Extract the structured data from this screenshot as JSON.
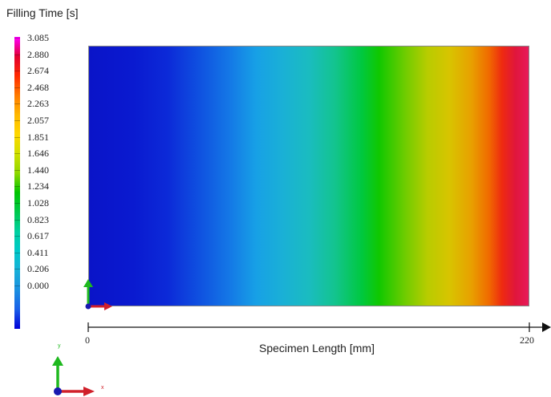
{
  "legend": {
    "title": "Filling Time [s]",
    "labels": [
      "3.085",
      "2.880",
      "2.674",
      "2.468",
      "2.263",
      "2.057",
      "1.851",
      "1.646",
      "1.440",
      "1.234",
      "1.028",
      "0.823",
      "0.617",
      "0.411",
      "0.206",
      "0.000"
    ],
    "colors": [
      "#ff00ff",
      "#e20030",
      "#ff2a00",
      "#ff7a00",
      "#ffb800",
      "#ffd700",
      "#d0e000",
      "#8fd800",
      "#00c400",
      "#00c84c",
      "#00d0a0",
      "#00c8c8",
      "#18b0d8",
      "#1b90e0",
      "#1a60e8",
      "#0000d8"
    ]
  },
  "plot": {
    "x_axis_title": "Specimen Length [mm]",
    "x_tick_min": "0",
    "x_tick_max": "220",
    "gradient_stops": [
      "#0a14c8",
      "#0a1ad0",
      "#0c2ad8",
      "#0f50e0",
      "#1478e6",
      "#17a0e6",
      "#1ab0d6",
      "#1abcc0",
      "#13c48e",
      "#00c840",
      "#10c800",
      "#70cc00",
      "#b8cc00",
      "#d8c400",
      "#e8a000",
      "#f06a00",
      "#ee2a10",
      "#e0163c",
      "#e81a5a"
    ]
  },
  "triad": {
    "y_label": "y",
    "x_label": "x"
  }
}
